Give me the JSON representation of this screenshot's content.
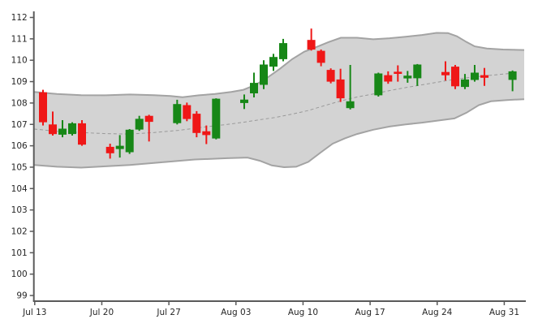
{
  "chart_data": {
    "type": "candlestick",
    "title": "",
    "xlabel": "",
    "ylabel": "",
    "grid": false,
    "legend": null,
    "x_axis": {
      "tick_labels": [
        "Jul 13",
        "Jul 20",
        "Jul 27",
        "Aug 03",
        "Aug 10",
        "Aug 17",
        "Aug 24",
        "Aug 31"
      ]
    },
    "y_axis": {
      "min": 99,
      "max": 112,
      "step": 1
    },
    "candles": [
      {
        "date": "Jul 13",
        "open": 108.5,
        "high": 108.62,
        "low": 106.95,
        "close": 107.1
      },
      {
        "date": "Jul 14",
        "open": 107.0,
        "high": 107.6,
        "low": 106.48,
        "close": 106.55
      },
      {
        "date": "Jul 15",
        "open": 106.52,
        "high": 107.2,
        "low": 106.4,
        "close": 106.8
      },
      {
        "date": "Jul 16",
        "open": 106.55,
        "high": 107.1,
        "low": 106.48,
        "close": 107.05
      },
      {
        "date": "Jul 17",
        "open": 107.05,
        "high": 107.2,
        "low": 106.0,
        "close": 106.05
      },
      {
        "date": "Jul 20",
        "open": 105.95,
        "high": 106.1,
        "low": 105.4,
        "close": 105.65
      },
      {
        "date": "Jul 21",
        "open": 105.85,
        "high": 106.5,
        "low": 105.45,
        "close": 106.0
      },
      {
        "date": "Jul 22",
        "open": 105.7,
        "high": 106.78,
        "low": 105.62,
        "close": 106.75
      },
      {
        "date": "Jul 23",
        "open": 106.76,
        "high": 107.4,
        "low": 106.7,
        "close": 107.26
      },
      {
        "date": "Jul 24",
        "open": 107.4,
        "high": 107.45,
        "low": 106.2,
        "close": 107.12
      },
      {
        "date": "Jul 27",
        "open": 107.06,
        "high": 108.15,
        "low": 107.0,
        "close": 107.95
      },
      {
        "date": "Jul 28",
        "open": 107.9,
        "high": 108.02,
        "low": 107.15,
        "close": 107.25
      },
      {
        "date": "Jul 29",
        "open": 107.5,
        "high": 107.62,
        "low": 106.4,
        "close": 106.6
      },
      {
        "date": "Jul 30",
        "open": 106.68,
        "high": 106.95,
        "low": 106.08,
        "close": 106.5
      },
      {
        "date": "Jul 31",
        "open": 106.34,
        "high": 108.22,
        "low": 106.3,
        "close": 108.2
      },
      {
        "date": "Aug 03",
        "open": 108.0,
        "high": 108.4,
        "low": 107.72,
        "close": 108.16
      },
      {
        "date": "Aug 04",
        "open": 108.45,
        "high": 109.42,
        "low": 108.26,
        "close": 108.94
      },
      {
        "date": "Aug 05",
        "open": 108.85,
        "high": 110.0,
        "low": 108.65,
        "close": 109.8
      },
      {
        "date": "Aug 06",
        "open": 109.7,
        "high": 110.3,
        "low": 109.5,
        "close": 110.15
      },
      {
        "date": "Aug 07",
        "open": 110.05,
        "high": 111.0,
        "low": 109.95,
        "close": 110.8
      },
      {
        "date": "Aug 10",
        "open": 110.95,
        "high": 111.48,
        "low": 110.45,
        "close": 110.5
      },
      {
        "date": "Aug 11",
        "open": 110.44,
        "high": 110.5,
        "low": 109.72,
        "close": 109.88
      },
      {
        "date": "Aug 12",
        "open": 109.55,
        "high": 109.62,
        "low": 108.92,
        "close": 109.0
      },
      {
        "date": "Aug 13",
        "open": 109.1,
        "high": 109.6,
        "low": 108.05,
        "close": 108.22
      },
      {
        "date": "Aug 14",
        "open": 107.76,
        "high": 109.78,
        "low": 107.7,
        "close": 108.08
      },
      {
        "date": "Aug 17",
        "open": 108.36,
        "high": 109.42,
        "low": 108.3,
        "close": 109.38
      },
      {
        "date": "Aug 18",
        "open": 109.3,
        "high": 109.48,
        "low": 108.9,
        "close": 109.0
      },
      {
        "date": "Aug 19",
        "open": 109.46,
        "high": 109.76,
        "low": 109.0,
        "close": 109.36
      },
      {
        "date": "Aug 20",
        "open": 109.15,
        "high": 109.5,
        "low": 108.95,
        "close": 109.28
      },
      {
        "date": "Aug 21",
        "open": 109.16,
        "high": 109.82,
        "low": 108.8,
        "close": 109.8
      },
      {
        "date": "Aug 24",
        "open": 109.45,
        "high": 109.95,
        "low": 109.05,
        "close": 109.3
      },
      {
        "date": "Aug 25",
        "open": 109.7,
        "high": 109.78,
        "low": 108.65,
        "close": 108.78
      },
      {
        "date": "Aug 26",
        "open": 108.75,
        "high": 109.36,
        "low": 108.65,
        "close": 109.1
      },
      {
        "date": "Aug 27",
        "open": 109.08,
        "high": 109.78,
        "low": 109.0,
        "close": 109.42
      },
      {
        "date": "Aug 28",
        "open": 109.3,
        "high": 109.64,
        "low": 108.8,
        "close": 109.18
      },
      {
        "date": "Aug 31",
        "open": 109.08,
        "high": 109.52,
        "low": 108.55,
        "close": 109.48
      }
    ],
    "bollinger_band": {
      "upper": [
        [
          42,
          108.52
        ],
        [
          70,
          108.42
        ],
        [
          100,
          108.37
        ],
        [
          130,
          108.36
        ],
        [
          160,
          108.4
        ],
        [
          190,
          108.37
        ],
        [
          210,
          108.33
        ],
        [
          225,
          108.27
        ],
        [
          245,
          108.36
        ],
        [
          265,
          108.42
        ],
        [
          285,
          108.52
        ],
        [
          300,
          108.62
        ],
        [
          315,
          108.85
        ],
        [
          330,
          109.2
        ],
        [
          345,
          109.6
        ],
        [
          360,
          110.05
        ],
        [
          375,
          110.4
        ],
        [
          390,
          110.62
        ],
        [
          405,
          110.85
        ],
        [
          420,
          111.05
        ],
        [
          440,
          111.05
        ],
        [
          460,
          110.98
        ],
        [
          480,
          111.03
        ],
        [
          500,
          111.1
        ],
        [
          520,
          111.18
        ],
        [
          538,
          111.28
        ],
        [
          552,
          111.27
        ],
        [
          563,
          111.12
        ],
        [
          575,
          110.85
        ],
        [
          585,
          110.65
        ],
        [
          600,
          110.55
        ],
        [
          620,
          110.5
        ],
        [
          646,
          110.48
        ]
      ],
      "lower": [
        [
          42,
          105.1
        ],
        [
          70,
          105.02
        ],
        [
          100,
          104.98
        ],
        [
          130,
          105.04
        ],
        [
          160,
          105.1
        ],
        [
          200,
          105.23
        ],
        [
          240,
          105.36
        ],
        [
          280,
          105.42
        ],
        [
          305,
          105.45
        ],
        [
          320,
          105.3
        ],
        [
          335,
          105.08
        ],
        [
          350,
          105.0
        ],
        [
          365,
          105.02
        ],
        [
          380,
          105.25
        ],
        [
          395,
          105.68
        ],
        [
          410,
          106.1
        ],
        [
          425,
          106.35
        ],
        [
          440,
          106.55
        ],
        [
          460,
          106.75
        ],
        [
          480,
          106.9
        ],
        [
          500,
          107.0
        ],
        [
          520,
          107.08
        ],
        [
          540,
          107.18
        ],
        [
          560,
          107.28
        ],
        [
          575,
          107.55
        ],
        [
          590,
          107.9
        ],
        [
          605,
          108.08
        ],
        [
          625,
          108.14
        ],
        [
          646,
          108.18
        ]
      ],
      "middle": [
        [
          42,
          106.78
        ],
        [
          70,
          106.68
        ],
        [
          100,
          106.62
        ],
        [
          130,
          106.57
        ],
        [
          160,
          106.55
        ],
        [
          190,
          106.62
        ],
        [
          220,
          106.72
        ],
        [
          250,
          106.87
        ],
        [
          280,
          107.0
        ],
        [
          300,
          107.1
        ],
        [
          320,
          107.22
        ],
        [
          340,
          107.33
        ],
        [
          360,
          107.48
        ],
        [
          380,
          107.65
        ],
        [
          400,
          107.88
        ],
        [
          420,
          108.1
        ],
        [
          440,
          108.28
        ],
        [
          460,
          108.42
        ],
        [
          480,
          108.58
        ],
        [
          500,
          108.72
        ],
        [
          520,
          108.85
        ],
        [
          540,
          108.98
        ],
        [
          560,
          109.1
        ],
        [
          580,
          109.2
        ],
        [
          600,
          109.28
        ],
        [
          620,
          109.35
        ],
        [
          634,
          109.4
        ]
      ]
    },
    "colors": {
      "up_candle": "#178717",
      "down_candle": "#ef1717",
      "band_fill": "#d3d3d3",
      "band_edge": "#a3a3a3",
      "middle_line": "#999999",
      "axis_line": "#5a5a5a",
      "tick_text": "#262626"
    }
  }
}
